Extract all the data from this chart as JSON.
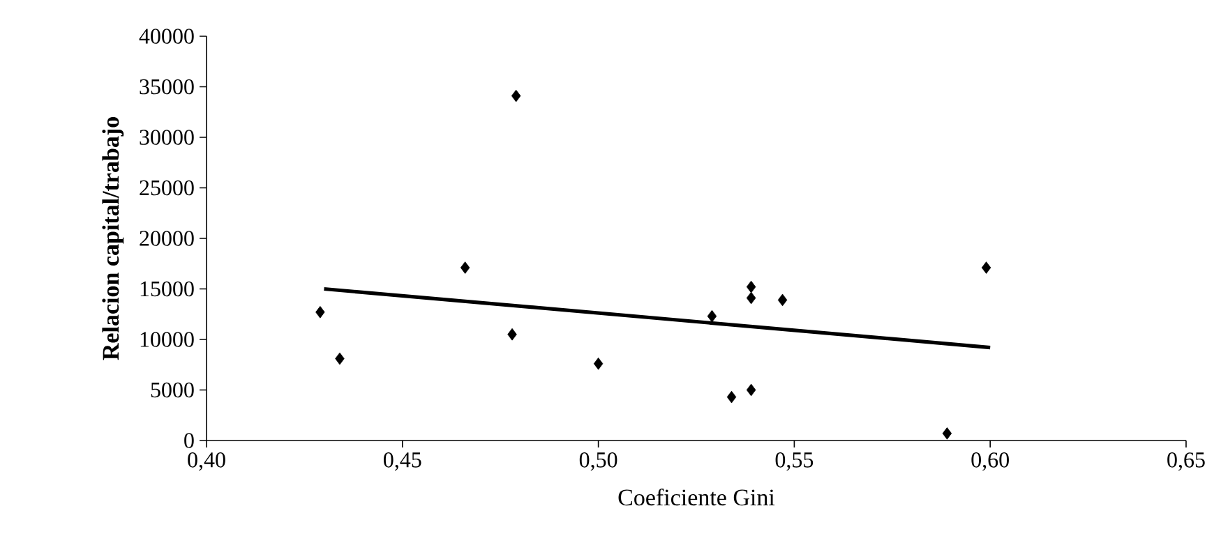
{
  "chart_data": {
    "type": "scatter",
    "xlabel": "Coeficiente Gini",
    "ylabel": "Relacion capital/trabajo",
    "xlim": [
      0.4,
      0.65
    ],
    "xticks": [
      {
        "value": 0.4,
        "label": "0,40"
      },
      {
        "value": 0.45,
        "label": "0,45"
      },
      {
        "value": 0.5,
        "label": "0,50"
      },
      {
        "value": 0.55,
        "label": "0,55"
      },
      {
        "value": 0.6,
        "label": "0,60"
      },
      {
        "value": 0.65,
        "label": "0,65"
      }
    ],
    "ylim": [
      0,
      40000
    ],
    "yticks": [
      0,
      5000,
      10000,
      15000,
      20000,
      25000,
      30000,
      35000,
      40000
    ],
    "series": [
      {
        "color": "#000000",
        "marker": "diamond",
        "x": [
          0.429,
          0.434,
          0.479,
          0.466,
          0.478,
          0.5,
          0.529,
          0.534,
          0.539,
          0.539,
          0.539,
          0.547,
          0.589,
          0.599
        ],
        "values": [
          12700,
          8100,
          34100,
          17100,
          10500,
          7600,
          12300,
          4300,
          15200,
          14100,
          5000,
          13900,
          700,
          17100
        ]
      },
      {
        "type": "line",
        "color": "#000000",
        "x": [
          0.43,
          0.6
        ],
        "values": [
          15000,
          9200
        ]
      }
    ]
  }
}
